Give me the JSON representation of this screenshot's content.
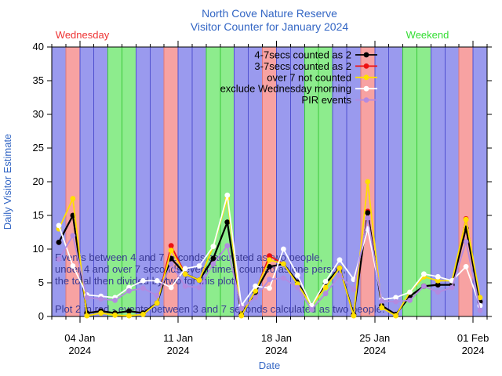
{
  "header": {
    "title_line1": "North Cove Nature Reserve",
    "title_line2": "Visitor Counter for January 2024",
    "wednesday_label": "Wednesday",
    "weekend_label": "Weekend"
  },
  "axes": {
    "y_label": "Daily Visitor Estimate",
    "x_label": "Date",
    "y_ticks": [
      0,
      5,
      10,
      15,
      20,
      25,
      30,
      35,
      40
    ],
    "x_major_ticks": [
      {
        "label": "04 Jan",
        "sub": "2024",
        "day_offset": 2
      },
      {
        "label": "11 Jan",
        "sub": "2024",
        "day_offset": 9
      },
      {
        "label": "18 Jan",
        "sub": "2024",
        "day_offset": 16
      },
      {
        "label": "25 Jan",
        "sub": "2024",
        "day_offset": 23
      },
      {
        "label": "01 Feb",
        "sub": "2024",
        "day_offset": 30
      }
    ]
  },
  "annotations": {
    "line1": "Events between 4 and 7 seconds calculated as two people,",
    "line2": "under 4 and over 7 seconds event times counted as one person,",
    "line3": "the total then divided by two for this plot.",
    "line4": "Plot 2 in red - events between 3 and 7 seconds calculated as two people."
  },
  "colors": {
    "background": "#ffffff",
    "weekday_band": "#9a9aee",
    "weekday_border": "#5050d0",
    "wednesday_band": "#f7a2a2",
    "wednesday_border": "#e07878",
    "weekend_band": "#8dec8d",
    "weekend_border": "#38c838",
    "frame": "#000000",
    "title_text": "#3366c4",
    "wednesday_text": "#ee3333",
    "weekend_text": "#33dd33",
    "annotation_text": "#3a3a94",
    "tick_text": "#000000"
  },
  "chart_data": {
    "type": "line",
    "title": "North Cove Nature Reserve Visitor Counter for January 2024",
    "xlabel": "Date",
    "ylabel": "Daily Visitor Estimate",
    "ylim": [
      0,
      40
    ],
    "grid": false,
    "legend_position": "top-right-inside",
    "x": [
      "02 Jan",
      "03 Jan",
      "04 Jan",
      "05 Jan",
      "06 Jan",
      "07 Jan",
      "08 Jan",
      "09 Jan",
      "10 Jan",
      "11 Jan",
      "12 Jan",
      "13 Jan",
      "14 Jan",
      "15 Jan",
      "16 Jan",
      "17 Jan",
      "18 Jan",
      "19 Jan",
      "20 Jan",
      "21 Jan",
      "22 Jan",
      "23 Jan",
      "24 Jan",
      "25 Jan",
      "26 Jan",
      "27 Jan",
      "28 Jan",
      "29 Jan",
      "30 Jan",
      "31 Jan",
      "01 Feb"
    ],
    "series": [
      {
        "name": "4-7secs counted as 2",
        "color": "#000000",
        "values": [
          11,
          15,
          0.5,
          0.8,
          0.5,
          0.8,
          0.5,
          2,
          8.6,
          6.3,
          5.4,
          8.6,
          14,
          0.3,
          3.6,
          7.4,
          7.8,
          5.1,
          1.6,
          4.9,
          7.2,
          0.3,
          15.4,
          1.6,
          0.3,
          3,
          4.5,
          4.7,
          4.7,
          13.1,
          2.2
        ]
      },
      {
        "name": "3-7secs counted as 2",
        "color": "#ee1111",
        "values": [
          11,
          15,
          0.5,
          0.8,
          0.5,
          0.8,
          0.5,
          2,
          10.5,
          6.3,
          5.4,
          8.6,
          14,
          0.3,
          3.6,
          9,
          7.8,
          5.1,
          1.6,
          4.9,
          7.2,
          0.3,
          15.6,
          1.6,
          0.3,
          3,
          4.5,
          4.7,
          4.7,
          14.5,
          2.2
        ]
      },
      {
        "name": "over 7 not counted",
        "color": "#ffdf00",
        "values": [
          13,
          17.5,
          0.1,
          0.5,
          0.2,
          0.1,
          0.3,
          2,
          9.8,
          6.3,
          5.4,
          10.4,
          17.5,
          0.1,
          3.8,
          8.4,
          7.8,
          4.8,
          1.6,
          4.3,
          7.2,
          0.1,
          20,
          1.3,
          0.1,
          3.6,
          5.9,
          5.3,
          5.3,
          14.4,
          2.8
        ]
      },
      {
        "name": "exclude Wednesday morning",
        "color": "#ffffff",
        "values": [
          13.5,
          7.5,
          3.2,
          3,
          2.8,
          4.3,
          5.3,
          5.3,
          4.3,
          7.1,
          7.5,
          10.4,
          18,
          1.6,
          4.5,
          4.2,
          10,
          6.1,
          1.6,
          5.2,
          8.4,
          5.5,
          13,
          2.5,
          2.8,
          3.6,
          6.3,
          5.9,
          5.3,
          7.4,
          1.6
        ]
      },
      {
        "name": "PIR events",
        "color": "#b38ae0",
        "values": [
          8.5,
          12,
          2.8,
          2.6,
          2.4,
          3.8,
          4.2,
          3.1,
          7.8,
          4.5,
          4.3,
          7.8,
          10.5,
          1.2,
          2.8,
          5.5,
          5.7,
          4.3,
          1,
          3.4,
          6.1,
          4,
          14.6,
          2.3,
          2.2,
          2.4,
          4.5,
          3.6,
          4.3,
          11.1,
          0.9
        ]
      }
    ],
    "bands": {
      "wednesday_day_indices": [
        1,
        8,
        15,
        22,
        29
      ],
      "weekend_day_indices": [
        4,
        5,
        11,
        12,
        18,
        19,
        25,
        26
      ]
    }
  }
}
